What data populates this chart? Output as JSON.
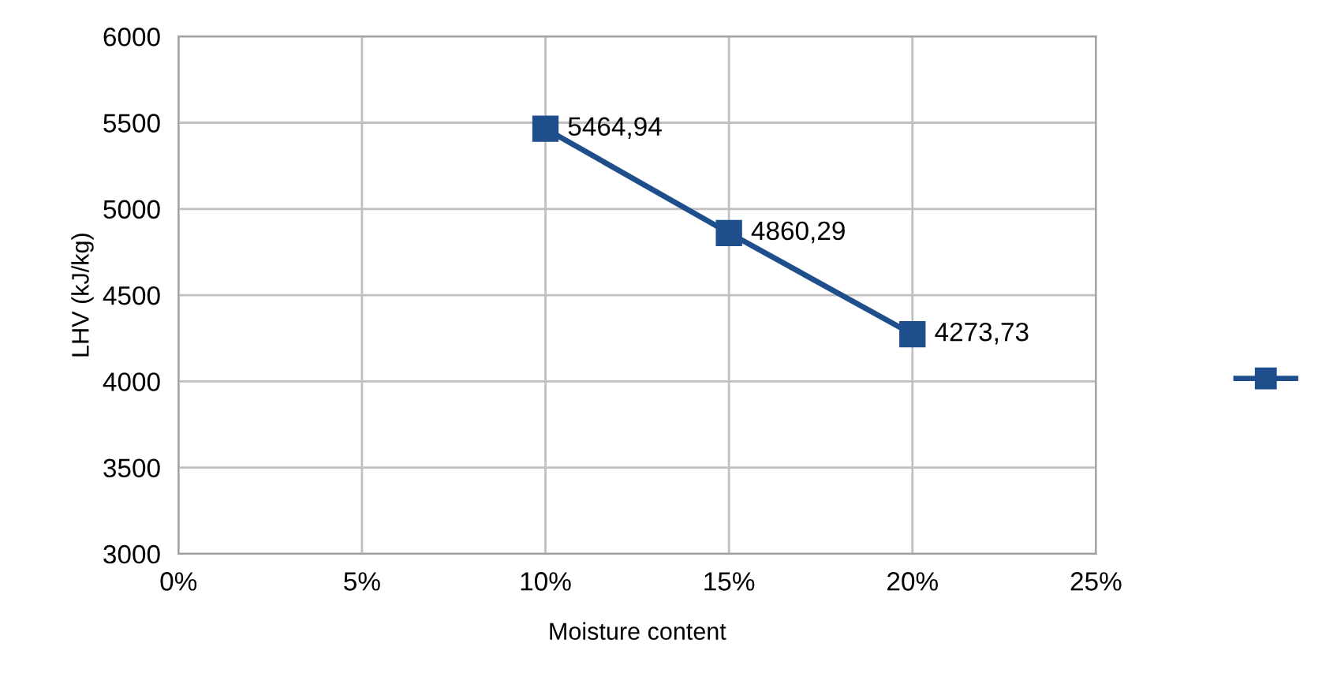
{
  "chart_data": {
    "type": "line",
    "xlabel": "Moisture content",
    "ylabel": "LHV (kJ/kg)",
    "x": [
      10,
      15,
      20
    ],
    "series": [
      {
        "color": "#1f4e8c",
        "values": [
          5464.94,
          4860.29,
          4273.73
        ],
        "value_labels": [
          "5464,94",
          "4860,29",
          "4273,73"
        ]
      }
    ],
    "xlim": [
      0,
      25
    ],
    "xticks": [
      {
        "value": 0,
        "label": "0%"
      },
      {
        "value": 5,
        "label": "5%"
      },
      {
        "value": 10,
        "label": "10%"
      },
      {
        "value": 15,
        "label": "15%"
      },
      {
        "value": 20,
        "label": "20%"
      },
      {
        "value": 25,
        "label": "25%"
      }
    ],
    "ylim": [
      3000,
      6000
    ],
    "yticks": [
      3000,
      3500,
      4000,
      4500,
      5000,
      5500,
      6000
    ],
    "grid": true,
    "marker": "square",
    "line_style": "solid"
  }
}
